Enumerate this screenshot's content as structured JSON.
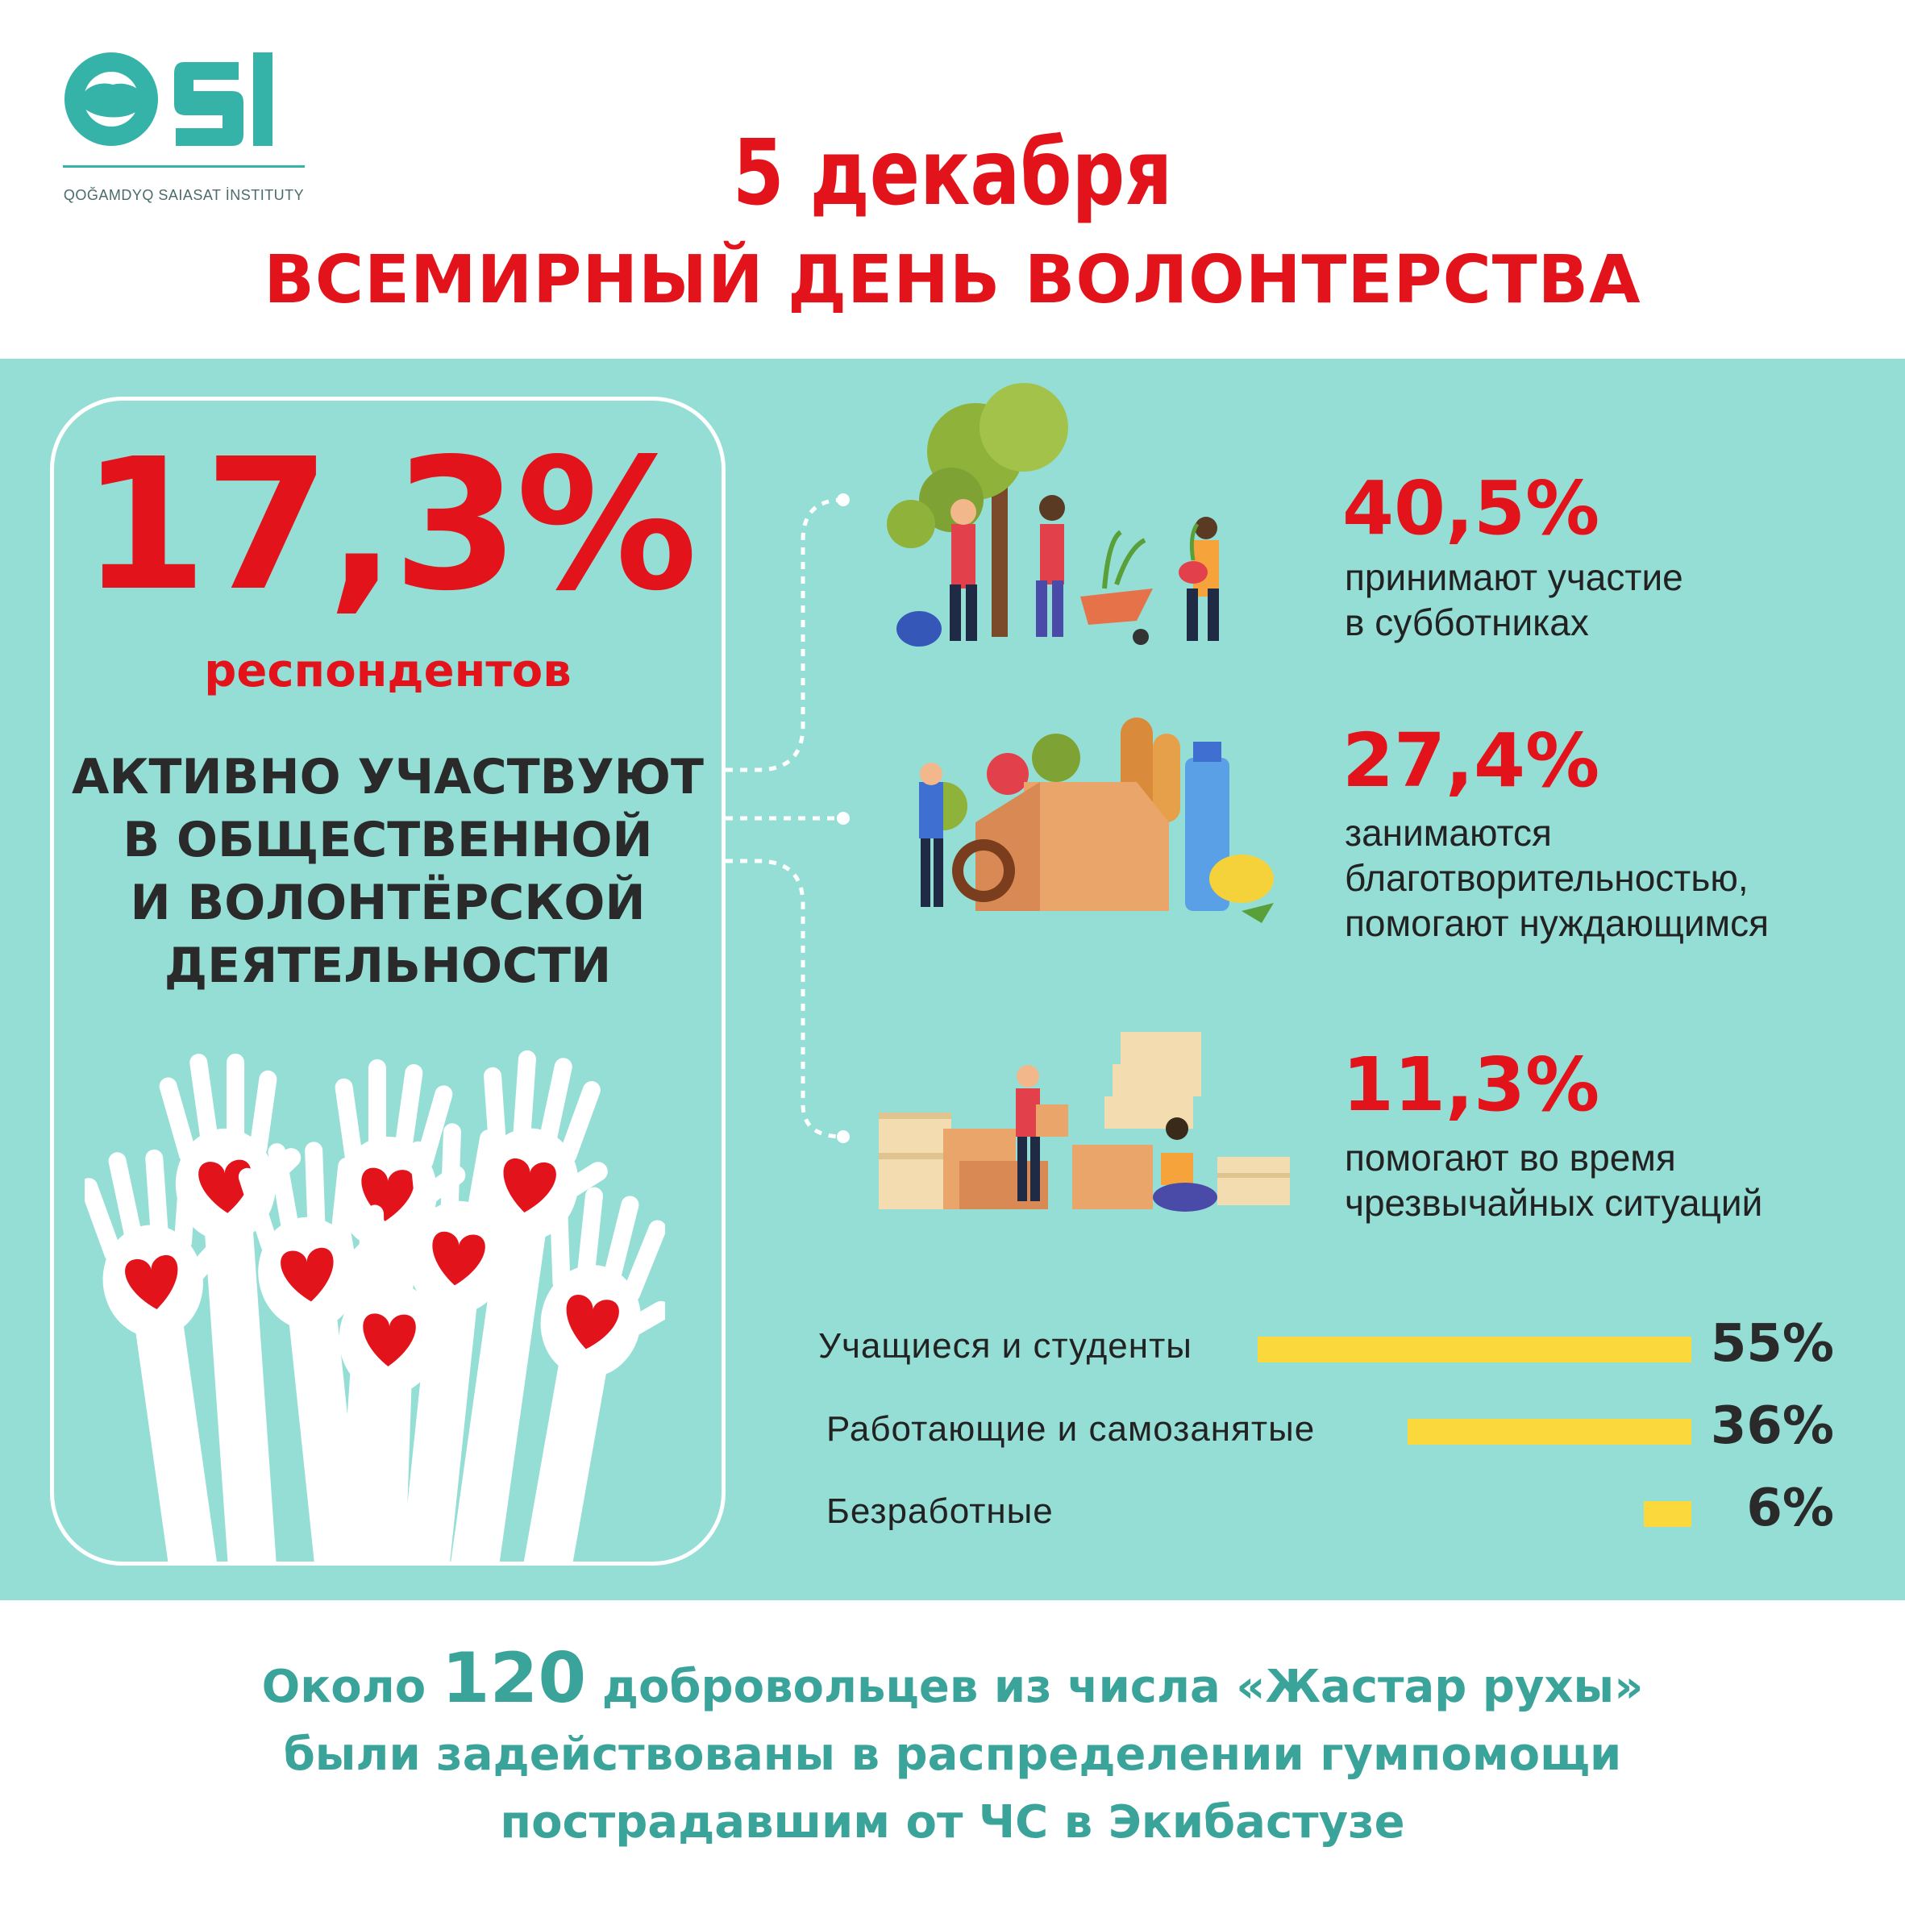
{
  "logo": {
    "mark": "QSI",
    "caption": "QOĞAMDYQ SAIASAT İNSTITUTY",
    "color": "#35b3a8"
  },
  "header": {
    "date": "5 декабря",
    "title": "ВСЕМИРНЫЙ ДЕНЬ ВОЛОНТЕРСТВА"
  },
  "highlight": {
    "percent": "17,3%",
    "respondents": "респондентов",
    "description": "АКТИВНО УЧАСТВУЮТ\nВ ОБЩЕСТВЕННОЙ\nИ ВОЛОНТЁРСКОЙ\nДЕЯТЕЛЬНОСТИ"
  },
  "stats": [
    {
      "value": "40,5%",
      "text": "принимают участие\nв субботниках",
      "icon": "volunteers-planting-trees-illustration"
    },
    {
      "value": "27,4%",
      "text": "занимаются\nблаготворительностью,\nпомогают нуждающимся",
      "icon": "charity-food-box-illustration"
    },
    {
      "value": "11,3%",
      "text": "помогают во время\nчрезвычайных ситуаций",
      "icon": "emergency-aid-boxes-illustration"
    }
  ],
  "bars": [
    {
      "label": "Учащиеся и студенты",
      "value_text": "55%",
      "value": 55
    },
    {
      "label": "Работающие и самозанятые",
      "value_text": "36%",
      "value": 36
    },
    {
      "label": "Безработные",
      "value_text": "6%",
      "value": 6
    }
  ],
  "footer": {
    "prefix": "Около ",
    "number": "120",
    "line1_rest": " добровольцев из числа «Жастар рухы»",
    "line2": "были задействованы в распределении гумпомощи",
    "line3": "пострадавшим от ЧС в Экибастузе"
  },
  "colors": {
    "accent_red": "#e3131b",
    "teal_band": "#95ded6",
    "footer_teal": "#3aa39a",
    "bar_yellow": "#fbd83c",
    "heart_red": "#e3131b"
  }
}
